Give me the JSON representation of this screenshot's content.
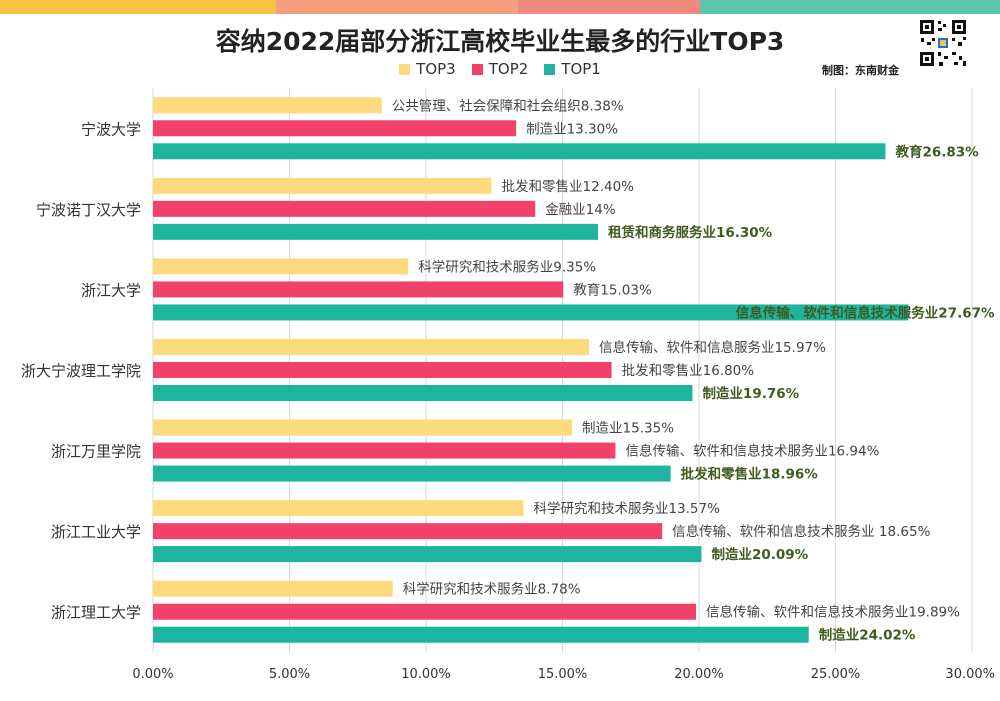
{
  "colors": {
    "top3": "#FDDA7C",
    "top2": "#F2426C",
    "top1": "#1DB5A0",
    "top1_label": "#3E5C1E",
    "grid": "#D9D9D9",
    "stripe": [
      "#F5C242",
      "#F4A07E",
      "#F28A80",
      "#58C7AD"
    ]
  },
  "header": {
    "title": "容纳2022届部分浙江高校毕业生最多的行业TOP3",
    "credit": "制图：东南财金"
  },
  "legend": [
    {
      "key": "top3",
      "label": "TOP3"
    },
    {
      "key": "top2",
      "label": "TOP2"
    },
    {
      "key": "top1",
      "label": "TOP1"
    }
  ],
  "chart_data": {
    "type": "bar",
    "orientation": "horizontal",
    "xlim": [
      0,
      30
    ],
    "x_ticks": [
      "0.00%",
      "5.00%",
      "10.00%",
      "15.00%",
      "20.00%",
      "25.00%",
      "30.00%"
    ],
    "grid": true,
    "legend_position": "top",
    "categories": [
      "宁波大学",
      "宁波诺丁汉大学",
      "浙江大学",
      "浙大宁波理工学院",
      "浙江万里学院",
      "浙江工业大学",
      "浙江理工大学"
    ],
    "series": [
      {
        "name": "TOP3",
        "values": [
          8.38,
          12.4,
          9.35,
          15.97,
          15.35,
          13.57,
          8.78
        ],
        "labels": [
          "公共管理、社会保障和社会组织8.38%",
          "批发和零售业12.40%",
          "科学研究和技术服务业9.35%",
          "信息传输、软件和信息服务业15.97%",
          "制造业15.35%",
          "科学研究和技术服务业13.57%",
          "科学研究和技术服务业8.78%"
        ]
      },
      {
        "name": "TOP2",
        "values": [
          13.3,
          14.0,
          15.03,
          16.8,
          16.94,
          18.65,
          19.89
        ],
        "labels": [
          "制造业13.30%",
          "金融业14%",
          "教育15.03%",
          "批发和零售业16.80%",
          "信息传输、软件和信息技术服务业16.94%",
          "信息传输、软件和信息技术服务业 18.65%",
          "信息传输、软件和信息技术服务业19.89%"
        ]
      },
      {
        "name": "TOP1",
        "values": [
          26.83,
          16.3,
          27.67,
          19.76,
          18.96,
          20.09,
          24.02
        ],
        "labels": [
          "教育26.83%",
          "租赁和商务服务业16.30%",
          "信息传输、软件和信息技术服务业27.67%",
          "制造业19.76%",
          "批发和零售业18.96%",
          "制造业20.09%",
          "制造业24.02%"
        ]
      }
    ]
  }
}
